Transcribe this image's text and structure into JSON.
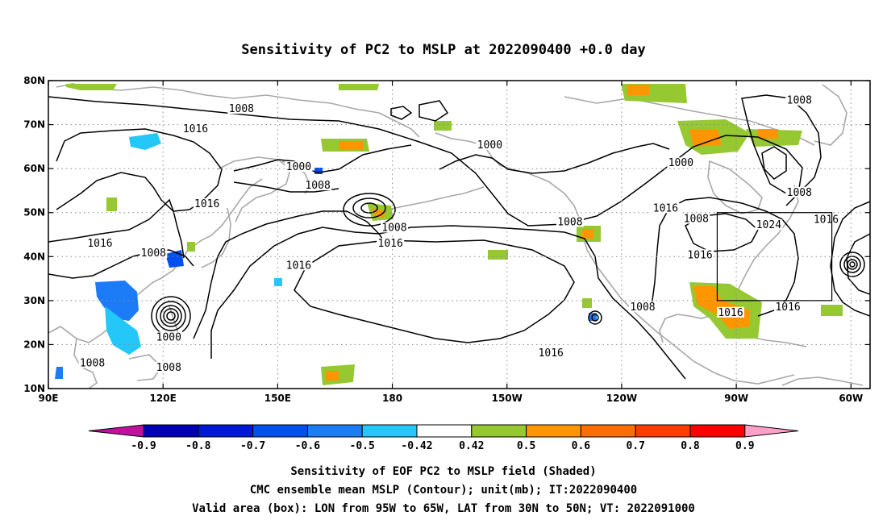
{
  "title": "Sensitivity of PC2 to MSLP at 2022090400 +0.0 day",
  "map": {
    "lon_range": [
      90,
      305
    ],
    "lat_range": [
      10,
      80
    ],
    "x_ticks": [
      {
        "lon": 90,
        "label": "90E"
      },
      {
        "lon": 120,
        "label": "120E"
      },
      {
        "lon": 150,
        "label": "150E"
      },
      {
        "lon": 180,
        "label": "180"
      },
      {
        "lon": 210,
        "label": "150W"
      },
      {
        "lon": 240,
        "label": "120W"
      },
      {
        "lon": 270,
        "label": "90W"
      },
      {
        "lon": 300,
        "label": "60W"
      }
    ],
    "y_ticks": [
      {
        "lat": 10,
        "label": "10N"
      },
      {
        "lat": 20,
        "label": "20N"
      },
      {
        "lat": 30,
        "label": "30N"
      },
      {
        "lat": 40,
        "label": "40N"
      },
      {
        "lat": 50,
        "label": "50N"
      },
      {
        "lat": 60,
        "label": "60N"
      },
      {
        "lat": 70,
        "label": "70N"
      },
      {
        "lat": 80,
        "label": "80N"
      }
    ],
    "valid_box": {
      "lon_min": 265,
      "lon_max": 295,
      "lat_min": 30,
      "lat_max": 50
    },
    "contour_labels": [
      {
        "text": "1008",
        "lon": 140.5,
        "lat": 73.2
      },
      {
        "text": "1016",
        "lon": 128.5,
        "lat": 68.6
      },
      {
        "text": "1000",
        "lon": 155.5,
        "lat": 60.0
      },
      {
        "text": "1008",
        "lon": 160.5,
        "lat": 55.8
      },
      {
        "tex": "",
        "text": "1016",
        "lon": 131.5,
        "lat": 51.6
      },
      {
        "text": "1016",
        "lon": 103.5,
        "lat": 42.6
      },
      {
        "text": "1008",
        "lon": 117.5,
        "lat": 40.4
      },
      {
        "text": "1016",
        "lon": 155.5,
        "lat": 37.6
      },
      {
        "text": "1000",
        "lon": 121.5,
        "lat": 21.3
      },
      {
        "text": "1008",
        "lon": 101.5,
        "lat": 15.4
      },
      {
        "text": "1008",
        "lon": 121.5,
        "lat": 14.4
      },
      {
        "text": "1000",
        "lon": 205.5,
        "lat": 65.0
      },
      {
        "text": "1008",
        "lon": 180.5,
        "lat": 46.2
      },
      {
        "text": "1016",
        "lon": 179.5,
        "lat": 42.6
      },
      {
        "text": "1008",
        "lon": 226.5,
        "lat": 47.5
      },
      {
        "text": "1000",
        "lon": 255.5,
        "lat": 60.9
      },
      {
        "text": "1016",
        "lon": 251.5,
        "lat": 50.6
      },
      {
        "text": "1008",
        "lon": 259.5,
        "lat": 48.2
      },
      {
        "text": "1016",
        "lon": 260.5,
        "lat": 40.0
      },
      {
        "text": "1008",
        "lon": 245.5,
        "lat": 28.1
      },
      {
        "text": "1016",
        "lon": 221.5,
        "lat": 17.7
      },
      {
        "text": "1024",
        "lon": 278.5,
        "lat": 46.8
      },
      {
        "text": "1016",
        "lon": 293.5,
        "lat": 48.0
      },
      {
        "text": "1016",
        "lon": 268.5,
        "lat": 26.9
      },
      {
        "text": "1016",
        "lon": 283.5,
        "lat": 28.1
      },
      {
        "text": "1008",
        "lon": 286.5,
        "lat": 75.1
      },
      {
        "text": "1008",
        "lon": 286.5,
        "lat": 54.2
      }
    ]
  },
  "colorbar": {
    "ticks": [
      "-0.9",
      "-0.8",
      "-0.7",
      "-0.6",
      "-0.5",
      "-0.42",
      "0.42",
      "0.5",
      "0.6",
      "0.7",
      "0.8",
      "0.9"
    ],
    "colors": [
      "#c0109e",
      "#0000b8",
      "#0018d8",
      "#0050f0",
      "#1c7cf8",
      "#24c8f8",
      "#ffffff",
      "#96c832",
      "#ff9600",
      "#ff6e00",
      "#ff3c00",
      "#ff0000",
      "#ffa0c8"
    ]
  },
  "captions": [
    "Sensitivity of EOF PC2 to MSLP field (Shaded)",
    "CMC ensemble mean MSLP (Contour); unit(mb); IT:2022090400",
    "Valid area (box): LON from 95W to 65W, LAT from 30N to 50N; VT: 2022091000"
  ]
}
